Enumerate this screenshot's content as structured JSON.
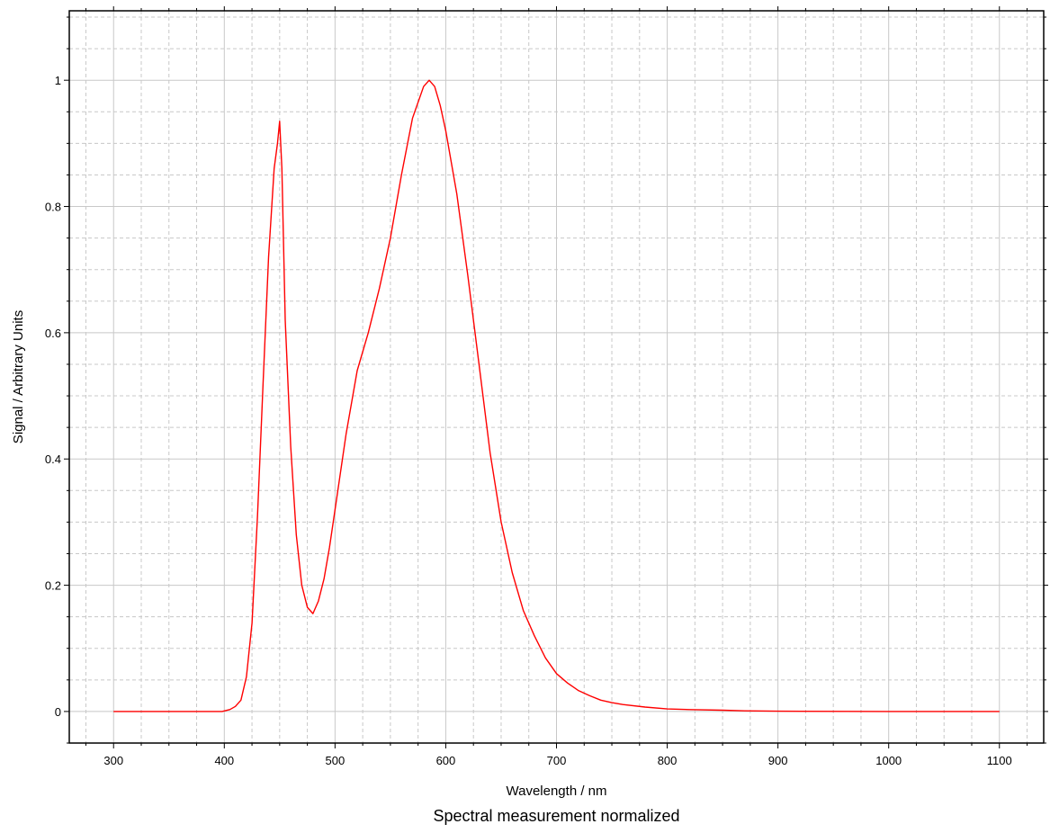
{
  "chart_data": {
    "type": "line",
    "title": "Spectral measurement normalized",
    "xlabel": "Wavelength / nm",
    "ylabel": "Signal / Arbitrary Units",
    "xlim": [
      260,
      1140
    ],
    "ylim": [
      -0.05,
      1.11
    ],
    "grid": true,
    "x_ticks": [
      300,
      400,
      500,
      600,
      700,
      800,
      900,
      1000,
      1100
    ],
    "y_ticks": [
      0,
      0.2,
      0.4,
      0.6,
      0.8,
      1
    ],
    "x_tick_labels": [
      "300",
      "400",
      "500",
      "600",
      "700",
      "800",
      "900",
      "1000",
      "1100"
    ],
    "y_tick_labels": [
      "0",
      "0.2",
      "0.4",
      "0.6",
      "0.8",
      "1"
    ],
    "series": [
      {
        "color": "#ff0000",
        "x": [
          300,
          350,
          398,
          405,
          410,
          415,
          420,
          425,
          430,
          435,
          440,
          445,
          448,
          450,
          452,
          455,
          460,
          465,
          470,
          475,
          480,
          485,
          490,
          495,
          500,
          510,
          520,
          530,
          540,
          550,
          560,
          570,
          580,
          585,
          590,
          595,
          600,
          610,
          620,
          630,
          640,
          650,
          660,
          670,
          680,
          690,
          700,
          710,
          720,
          730,
          740,
          750,
          760,
          780,
          800,
          820,
          850,
          870,
          900,
          1000,
          1100
        ],
        "y": [
          0,
          0,
          0,
          0.003,
          0.008,
          0.018,
          0.055,
          0.14,
          0.31,
          0.52,
          0.72,
          0.86,
          0.9,
          0.935,
          0.86,
          0.62,
          0.42,
          0.28,
          0.2,
          0.165,
          0.155,
          0.175,
          0.21,
          0.26,
          0.32,
          0.44,
          0.54,
          0.6,
          0.67,
          0.75,
          0.85,
          0.94,
          0.99,
          1.0,
          0.99,
          0.96,
          0.92,
          0.82,
          0.69,
          0.55,
          0.41,
          0.3,
          0.22,
          0.16,
          0.12,
          0.085,
          0.06,
          0.045,
          0.033,
          0.025,
          0.018,
          0.014,
          0.011,
          0.007,
          0.004,
          0.003,
          0.002,
          0.001,
          0.0005,
          0,
          0
        ]
      }
    ]
  }
}
